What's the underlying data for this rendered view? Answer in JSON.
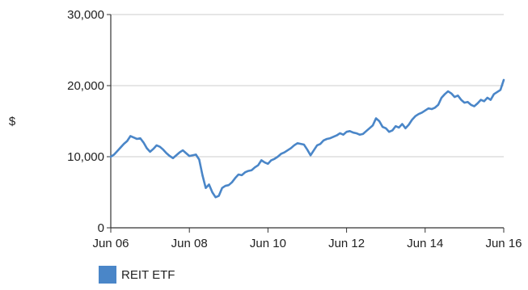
{
  "chart_data": {
    "type": "line",
    "title": "",
    "xlabel": "",
    "ylabel": "$",
    "ylim": [
      0,
      30000
    ],
    "xlim": [
      "2006-06",
      "2016-06"
    ],
    "y_ticks": [
      "30,000",
      "20,000",
      "10,000",
      "0"
    ],
    "y_tick_values": [
      30000,
      20000,
      10000,
      0
    ],
    "x_ticks": [
      "Jun 06",
      "Jun 08",
      "Jun 10",
      "Jun 12",
      "Jun 14",
      "Jun 16"
    ],
    "x_tick_values": [
      "2006-06",
      "2008-06",
      "2010-06",
      "2012-06",
      "2014-06",
      "2016-06"
    ],
    "grid": "horizontal",
    "legend_position": "bottom-left",
    "series": [
      {
        "name": "REIT ETF",
        "color": "#4a86c8",
        "x": [
          "2006-06",
          "2006-07",
          "2006-08",
          "2006-09",
          "2006-10",
          "2006-11",
          "2006-12",
          "2007-01",
          "2007-02",
          "2007-03",
          "2007-04",
          "2007-05",
          "2007-06",
          "2007-07",
          "2007-08",
          "2007-09",
          "2007-10",
          "2007-11",
          "2007-12",
          "2008-01",
          "2008-02",
          "2008-03",
          "2008-04",
          "2008-05",
          "2008-06",
          "2008-07",
          "2008-08",
          "2008-09",
          "2008-10",
          "2008-11",
          "2008-12",
          "2009-01",
          "2009-02",
          "2009-03",
          "2009-04",
          "2009-05",
          "2009-06",
          "2009-07",
          "2009-08",
          "2009-09",
          "2009-10",
          "2009-11",
          "2009-12",
          "2010-01",
          "2010-02",
          "2010-03",
          "2010-04",
          "2010-05",
          "2010-06",
          "2010-07",
          "2010-08",
          "2010-09",
          "2010-10",
          "2010-11",
          "2010-12",
          "2011-01",
          "2011-02",
          "2011-03",
          "2011-04",
          "2011-05",
          "2011-06",
          "2011-07",
          "2011-08",
          "2011-09",
          "2011-10",
          "2011-11",
          "2011-12",
          "2012-01",
          "2012-02",
          "2012-03",
          "2012-04",
          "2012-05",
          "2012-06",
          "2012-07",
          "2012-08",
          "2012-09",
          "2012-10",
          "2012-11",
          "2012-12",
          "2013-01",
          "2013-02",
          "2013-03",
          "2013-04",
          "2013-05",
          "2013-06",
          "2013-07",
          "2013-08",
          "2013-09",
          "2013-10",
          "2013-11",
          "2013-12",
          "2014-01",
          "2014-02",
          "2014-03",
          "2014-04",
          "2014-05",
          "2014-06",
          "2014-07",
          "2014-08",
          "2014-09",
          "2014-10",
          "2014-11",
          "2014-12",
          "2015-01",
          "2015-02",
          "2015-03",
          "2015-04",
          "2015-05",
          "2015-06",
          "2015-07",
          "2015-08",
          "2015-09",
          "2015-10",
          "2015-11",
          "2015-12",
          "2016-01",
          "2016-02",
          "2016-03",
          "2016-04",
          "2016-05",
          "2016-06"
        ],
        "values": [
          10000,
          10300,
          10800,
          11300,
          11800,
          12200,
          12900,
          12700,
          12500,
          12600,
          12000,
          11200,
          10700,
          11100,
          11600,
          11400,
          11000,
          10500,
          10100,
          9800,
          10200,
          10600,
          10900,
          10500,
          10100,
          10200,
          10300,
          9600,
          7400,
          5600,
          6100,
          5000,
          4300,
          4500,
          5600,
          5900,
          6000,
          6400,
          7000,
          7500,
          7400,
          7800,
          8000,
          8100,
          8500,
          8800,
          9500,
          9200,
          9000,
          9500,
          9700,
          10000,
          10400,
          10600,
          10900,
          11200,
          11600,
          11900,
          11800,
          11700,
          11000,
          10200,
          10900,
          11600,
          11800,
          12300,
          12500,
          12600,
          12800,
          13000,
          13300,
          13100,
          13500,
          13600,
          13400,
          13300,
          13100,
          13200,
          13600,
          14000,
          14400,
          15400,
          15000,
          14200,
          14000,
          13500,
          13700,
          14300,
          14100,
          14600,
          14000,
          14500,
          15200,
          15700,
          16000,
          16200,
          16500,
          16800,
          16700,
          16900,
          17300,
          18300,
          18800,
          19200,
          18900,
          18400,
          18600,
          18000,
          17600,
          17700,
          17300,
          17100,
          17500,
          18000,
          17800,
          18300,
          18000,
          18800,
          19100,
          19400,
          20800
        ]
      }
    ]
  }
}
